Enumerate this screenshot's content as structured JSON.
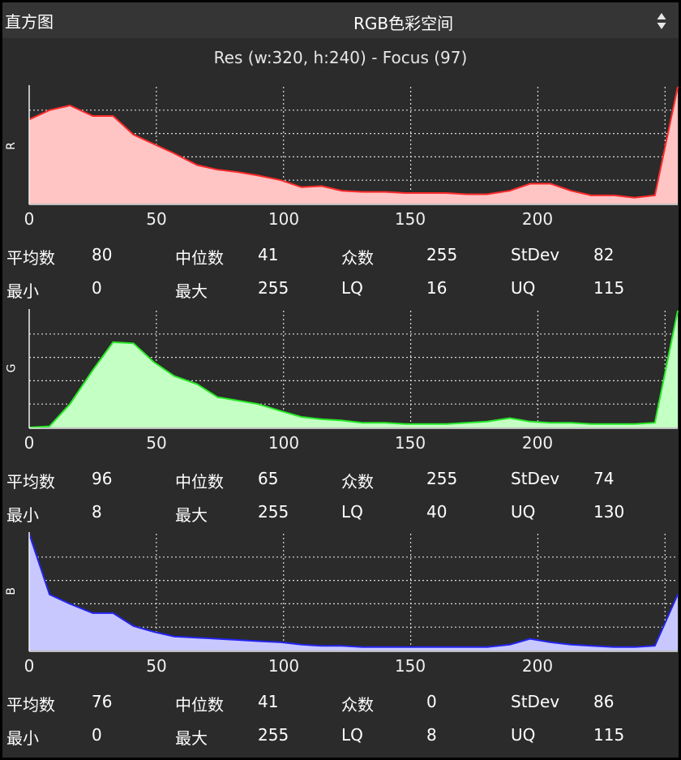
{
  "header": {
    "title": "直方图",
    "colorspace": "RGB色彩空间"
  },
  "subtitle": "Res (w:320, h:240) - Focus (97)",
  "x_ticks": [
    "0",
    "50",
    "100",
    "150",
    "200"
  ],
  "stat_labels": {
    "mean": "平均数",
    "median": "中位数",
    "mode": "众数",
    "stdev": "StDev",
    "min": "最小",
    "max": "最大",
    "lq": "LQ",
    "uq": "UQ"
  },
  "channels": {
    "r": {
      "label": "R",
      "stats": {
        "mean": "80",
        "median": "41",
        "mode": "255",
        "stdev": "82",
        "min": "0",
        "max": "255",
        "lq": "16",
        "uq": "115"
      }
    },
    "g": {
      "label": "G",
      "stats": {
        "mean": "96",
        "median": "65",
        "mode": "255",
        "stdev": "74",
        "min": "8",
        "max": "255",
        "lq": "40",
        "uq": "130"
      }
    },
    "b": {
      "label": "B",
      "stats": {
        "mean": "76",
        "median": "41",
        "mode": "0",
        "stdev": "86",
        "min": "0",
        "max": "255",
        "lq": "8",
        "uq": "115"
      }
    }
  },
  "colors": {
    "r_fill": "#ffc4c4",
    "r_line": "#ff2a2a",
    "g_fill": "#c4ffc4",
    "g_line": "#27e827",
    "b_fill": "#c8c8ff",
    "b_line": "#2424ee",
    "axis": "#f0f0f0",
    "grid": "#dcdcdc"
  },
  "chart_data": [
    {
      "type": "area",
      "series": [
        {
          "name": "R",
          "x": [
            0,
            8,
            16,
            25,
            33,
            41,
            49,
            57,
            66,
            74,
            82,
            90,
            99,
            107,
            115,
            123,
            131,
            140,
            148,
            156,
            164,
            172,
            180,
            189,
            197,
            205,
            213,
            221,
            230,
            238,
            246,
            255
          ],
          "y": [
            0.72,
            0.8,
            0.84,
            0.75,
            0.75,
            0.59,
            0.51,
            0.43,
            0.33,
            0.29,
            0.27,
            0.24,
            0.2,
            0.14,
            0.15,
            0.11,
            0.1,
            0.1,
            0.09,
            0.09,
            0.09,
            0.08,
            0.08,
            0.11,
            0.17,
            0.17,
            0.11,
            0.07,
            0.07,
            0.05,
            0.07,
            1.0
          ]
        }
      ],
      "xlim": [
        0,
        255
      ]
    },
    {
      "type": "area",
      "series": [
        {
          "name": "G",
          "x": [
            0,
            8,
            16,
            25,
            33,
            41,
            49,
            57,
            66,
            74,
            82,
            90,
            99,
            107,
            115,
            123,
            131,
            140,
            148,
            156,
            164,
            172,
            180,
            189,
            197,
            205,
            213,
            221,
            230,
            238,
            246,
            255
          ],
          "y": [
            0.0,
            0.01,
            0.2,
            0.49,
            0.73,
            0.72,
            0.56,
            0.44,
            0.37,
            0.26,
            0.23,
            0.2,
            0.14,
            0.09,
            0.07,
            0.06,
            0.04,
            0.04,
            0.03,
            0.03,
            0.03,
            0.04,
            0.05,
            0.08,
            0.05,
            0.04,
            0.04,
            0.03,
            0.03,
            0.03,
            0.04,
            1.0
          ]
        }
      ],
      "xlim": [
        0,
        255
      ]
    },
    {
      "type": "area",
      "series": [
        {
          "name": "B",
          "x": [
            0,
            8,
            16,
            25,
            33,
            41,
            49,
            57,
            66,
            74,
            82,
            90,
            99,
            107,
            115,
            123,
            131,
            140,
            148,
            156,
            164,
            172,
            180,
            189,
            197,
            205,
            213,
            221,
            230,
            238,
            246,
            255
          ],
          "y": [
            1.0,
            0.48,
            0.4,
            0.32,
            0.32,
            0.21,
            0.16,
            0.12,
            0.11,
            0.1,
            0.09,
            0.08,
            0.07,
            0.05,
            0.04,
            0.04,
            0.03,
            0.03,
            0.03,
            0.03,
            0.03,
            0.03,
            0.03,
            0.05,
            0.1,
            0.07,
            0.05,
            0.04,
            0.03,
            0.03,
            0.04,
            0.48
          ]
        }
      ],
      "xlim": [
        0,
        255
      ]
    }
  ]
}
